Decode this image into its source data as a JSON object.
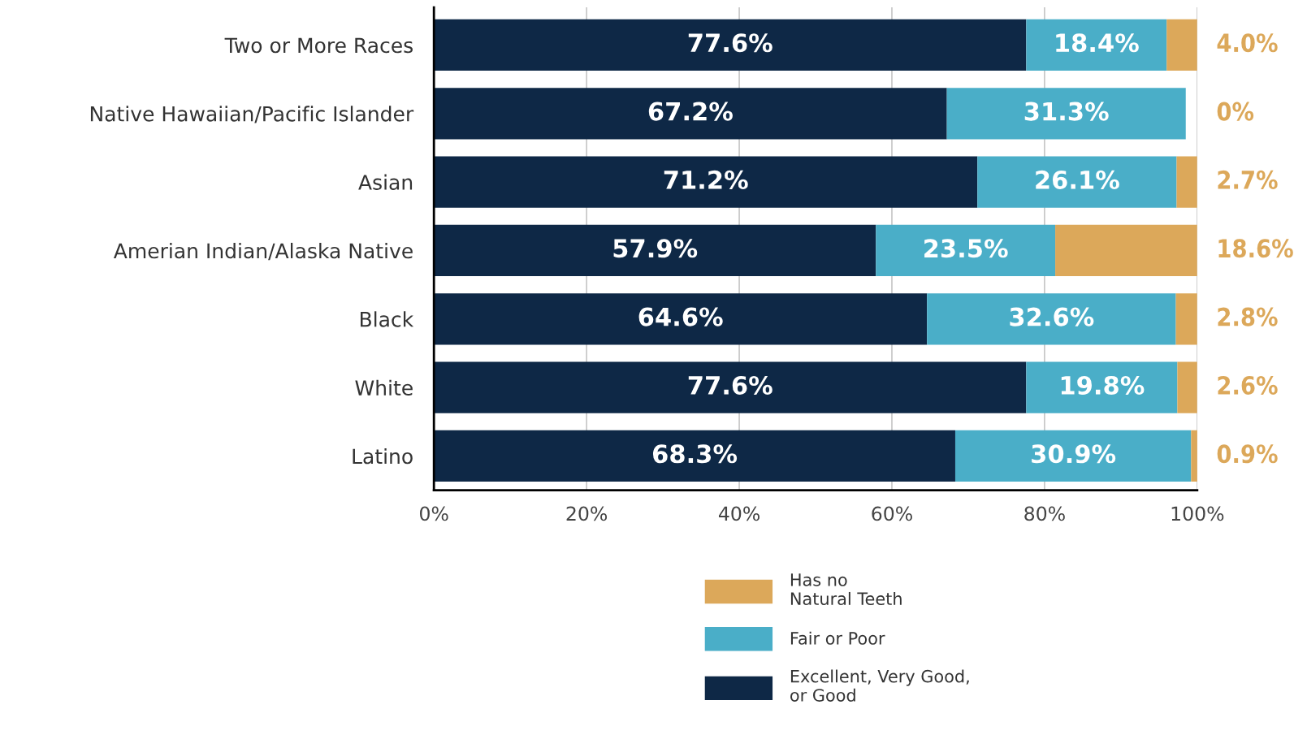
{
  "chart_data": {
    "type": "bar",
    "orientation": "horizontal",
    "stacked": true,
    "categories": [
      "Two or More Races",
      "Native Hawaiian/Pacific Islander",
      "Asian",
      "Amerian Indian/Alaska Native",
      "Black",
      "White",
      "Latino"
    ],
    "series": [
      {
        "name": "Excellent, Very Good,\nor Good",
        "color": "#0e2846",
        "values": [
          77.6,
          67.2,
          71.2,
          57.9,
          64.6,
          77.6,
          68.3
        ],
        "value_labels": [
          "77.6%",
          "67.2%",
          "71.2%",
          "57.9%",
          "64.6%",
          "77.6%",
          "68.3%"
        ]
      },
      {
        "name": "Fair or Poor",
        "color": "#4aaec8",
        "values": [
          18.4,
          31.3,
          26.1,
          23.5,
          32.6,
          19.8,
          30.9
        ],
        "value_labels": [
          "18.4%",
          "31.3%",
          "26.1%",
          "23.5%",
          "32.6%",
          "19.8%",
          "30.9%"
        ]
      },
      {
        "name": "Has no\nNatural Teeth",
        "color": "#dca85a",
        "values": [
          4.0,
          0,
          2.7,
          18.6,
          2.8,
          2.6,
          0.9
        ],
        "value_labels": [
          "4.0%",
          "0%",
          "2.7%",
          "18.6%",
          "2.8%",
          "2.6%",
          "0.9%"
        ]
      }
    ],
    "xlim": [
      0,
      100
    ],
    "xticks": [
      {
        "value": 0,
        "label": "0%"
      },
      {
        "value": 20,
        "label": "20%"
      },
      {
        "value": 40,
        "label": "40%"
      },
      {
        "value": 60,
        "label": "60%"
      },
      {
        "value": 80,
        "label": "80%"
      },
      {
        "value": 100,
        "label": "100%"
      }
    ],
    "grid": "x",
    "legend": "bottom"
  }
}
